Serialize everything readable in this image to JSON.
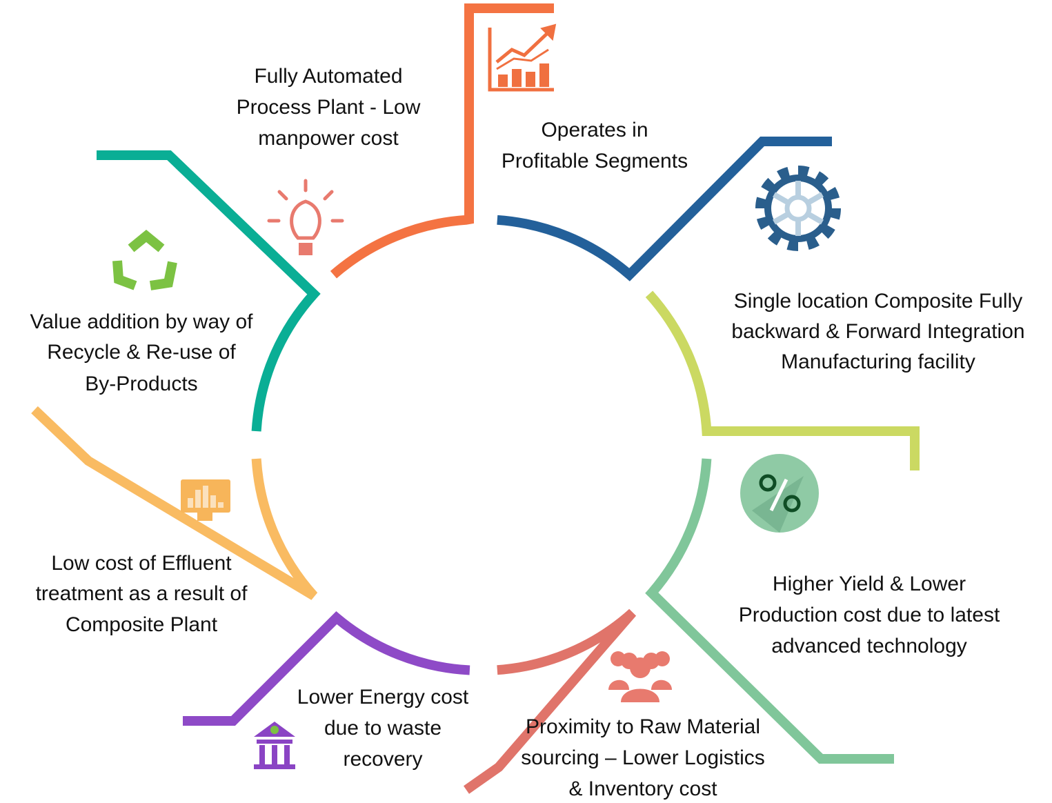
{
  "nodes": [
    {
      "lines": [
        "Fully Automated",
        "Process Plant - Low",
        "manpower cost"
      ]
    },
    {
      "lines": [
        "Operates in",
        "Profitable Segments"
      ]
    },
    {
      "lines": [
        "Single location Composite Fully",
        "backward & Forward Integration",
        "Manufacturing facility"
      ]
    },
    {
      "lines": [
        "Higher Yield & Lower",
        "Production cost due to latest",
        "advanced technology"
      ]
    },
    {
      "lines": [
        "Proximity to Raw Material",
        "sourcing – Lower Logistics",
        "& Inventory cost"
      ]
    },
    {
      "lines": [
        "Lower Energy cost",
        "due to waste",
        "recovery"
      ]
    },
    {
      "lines": [
        "Low cost of Effluent",
        "treatment as a result of",
        "Composite Plant"
      ]
    },
    {
      "lines": [
        "Value addition by way of",
        "Recycle & Re-use of",
        "By-Products"
      ]
    }
  ]
}
